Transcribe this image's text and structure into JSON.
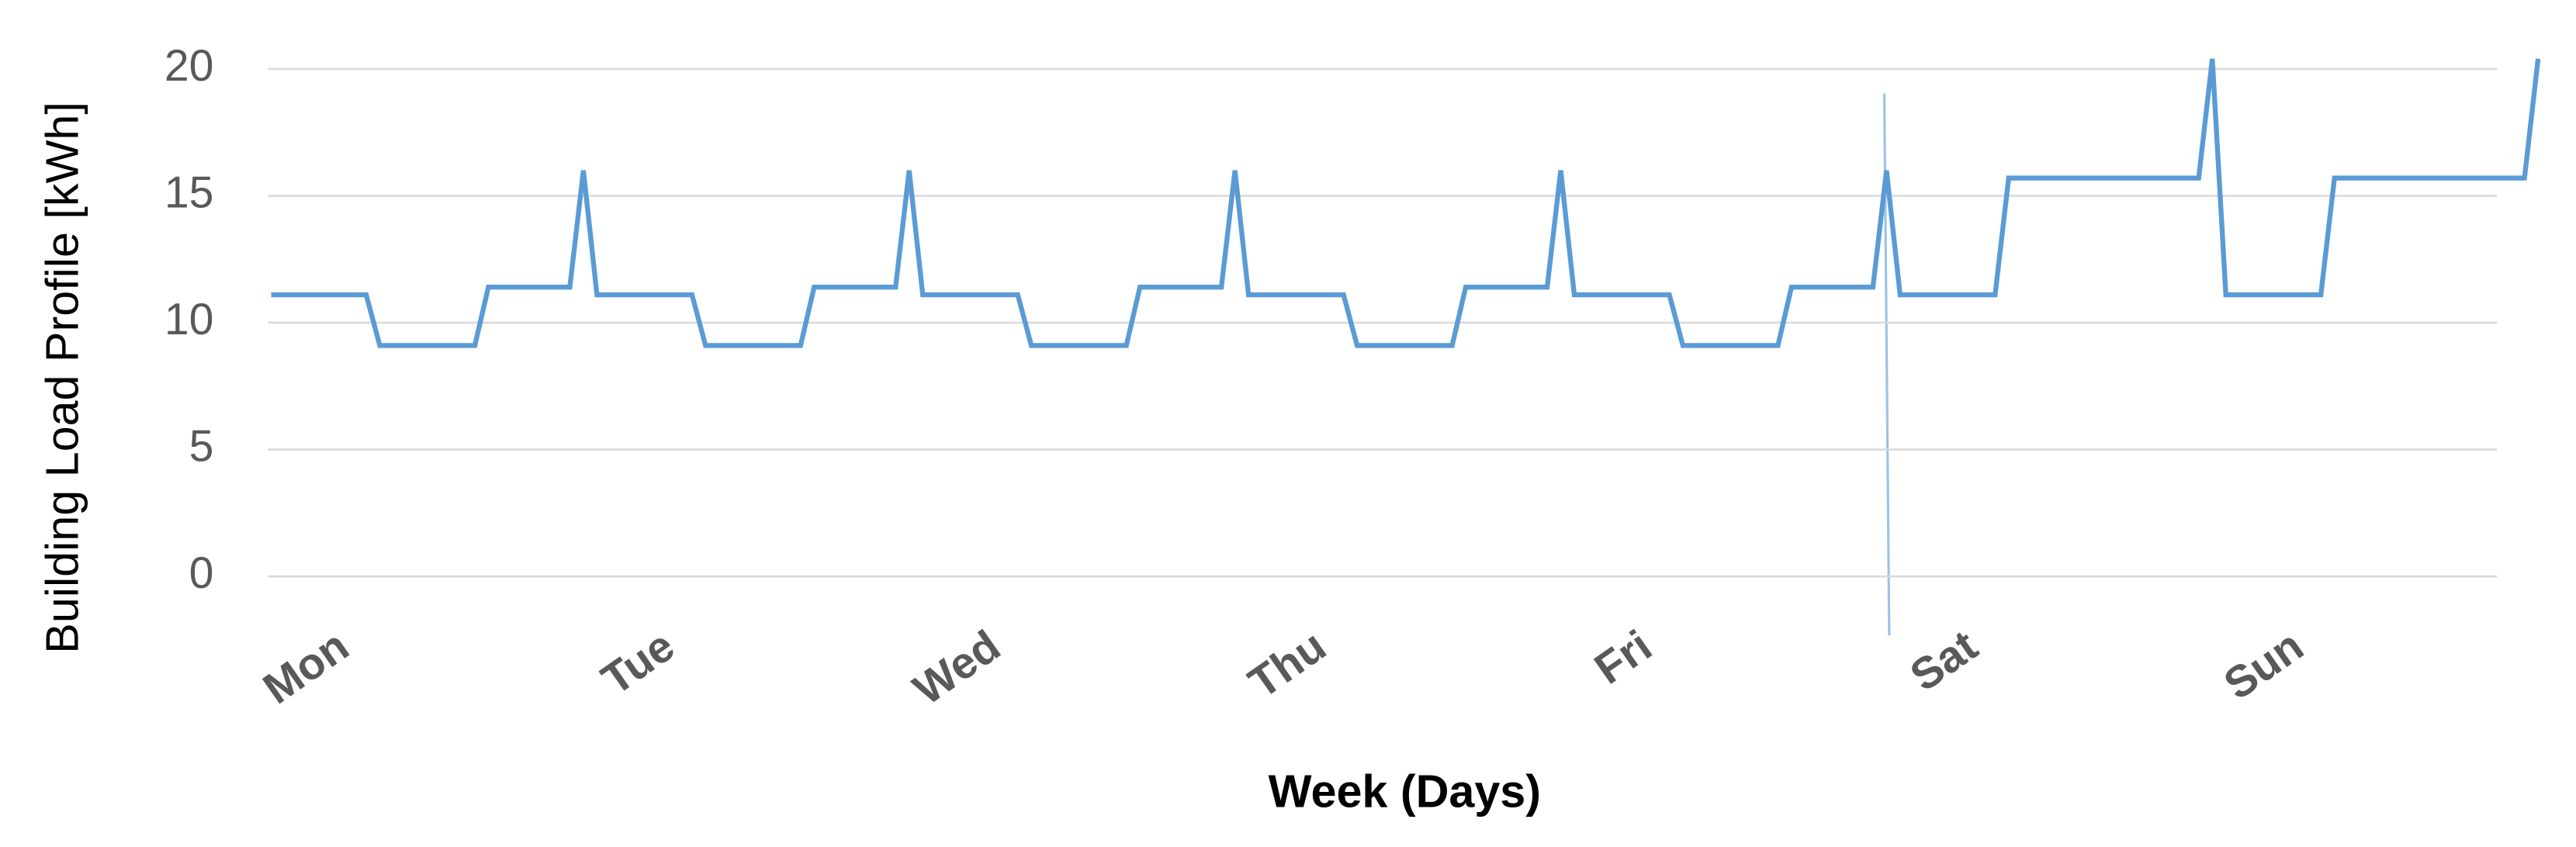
{
  "chart_data": {
    "type": "line",
    "ylabel": "Building Load Profile [kWh]",
    "xlabel": "Week (Days)",
    "categories": [
      "Mon",
      null,
      null,
      null,
      null,
      null,
      null,
      null,
      null,
      null,
      null,
      null,
      null,
      null,
      null,
      null,
      null,
      null,
      null,
      null,
      null,
      null,
      null,
      null,
      "Tue",
      null,
      null,
      null,
      null,
      null,
      null,
      null,
      null,
      null,
      null,
      null,
      null,
      null,
      null,
      null,
      null,
      null,
      null,
      null,
      null,
      null,
      null,
      null,
      "Wed",
      null,
      null,
      null,
      null,
      null,
      null,
      null,
      null,
      null,
      null,
      null,
      null,
      null,
      null,
      null,
      null,
      null,
      null,
      null,
      null,
      null,
      null,
      null,
      "Thu",
      null,
      null,
      null,
      null,
      null,
      null,
      null,
      null,
      null,
      null,
      null,
      null,
      null,
      null,
      null,
      null,
      null,
      null,
      null,
      null,
      null,
      null,
      null,
      "Fri",
      null,
      null,
      null,
      null,
      null,
      null,
      null,
      null,
      null,
      null,
      null,
      null,
      null,
      null,
      null,
      null,
      null,
      null,
      null,
      null,
      null,
      null,
      null,
      "Sat",
      null,
      null,
      null,
      null,
      null,
      null,
      null,
      null,
      null,
      null,
      null,
      null,
      null,
      null,
      null,
      null,
      null,
      null,
      null,
      null,
      null,
      null,
      null,
      "Sun",
      null,
      null,
      null,
      null,
      null,
      null,
      null,
      null,
      null,
      null,
      null,
      null,
      null,
      null,
      null,
      null,
      null,
      null,
      null,
      null,
      null,
      null,
      null
    ],
    "values": [
      11.1,
      11.1,
      11.1,
      11.1,
      11.1,
      11.1,
      11.1,
      11.1,
      9.1,
      9.1,
      9.1,
      9.1,
      9.1,
      9.1,
      9.1,
      9.1,
      11.4,
      11.4,
      11.4,
      11.4,
      11.4,
      11.4,
      11.4,
      16,
      11.1,
      11.1,
      11.1,
      11.1,
      11.1,
      11.1,
      11.1,
      11.1,
      9.1,
      9.1,
      9.1,
      9.1,
      9.1,
      9.1,
      9.1,
      9.1,
      11.4,
      11.4,
      11.4,
      11.4,
      11.4,
      11.4,
      11.4,
      16,
      11.1,
      11.1,
      11.1,
      11.1,
      11.1,
      11.1,
      11.1,
      11.1,
      9.1,
      9.1,
      9.1,
      9.1,
      9.1,
      9.1,
      9.1,
      9.1,
      11.4,
      11.4,
      11.4,
      11.4,
      11.4,
      11.4,
      11.4,
      16,
      11.1,
      11.1,
      11.1,
      11.1,
      11.1,
      11.1,
      11.1,
      11.1,
      9.1,
      9.1,
      9.1,
      9.1,
      9.1,
      9.1,
      9.1,
      9.1,
      11.4,
      11.4,
      11.4,
      11.4,
      11.4,
      11.4,
      11.4,
      16,
      11.1,
      11.1,
      11.1,
      11.1,
      11.1,
      11.1,
      11.1,
      11.1,
      9.1,
      9.1,
      9.1,
      9.1,
      9.1,
      9.1,
      9.1,
      9.1,
      11.4,
      11.4,
      11.4,
      11.4,
      11.4,
      11.4,
      11.4,
      16,
      11.1,
      11.1,
      11.1,
      11.1,
      11.1,
      11.1,
      11.1,
      11.1,
      15.7,
      15.7,
      15.7,
      15.7,
      15.7,
      15.7,
      15.7,
      15.7,
      15.7,
      15.7,
      15.7,
      15.7,
      15.7,
      15.7,
      15.7,
      20.4,
      11.1,
      11.1,
      11.1,
      11.1,
      11.1,
      11.1,
      11.1,
      11.1,
      15.7,
      15.7,
      15.7,
      15.7,
      15.7,
      15.7,
      15.7,
      15.7,
      15.7,
      15.7,
      15.7,
      15.7,
      15.7,
      15.7,
      15.7,
      20.4
    ],
    "color": "#5b9bd5",
    "ylim": [
      0,
      20
    ],
    "yticks": [
      0,
      5,
      10,
      15,
      20
    ],
    "grid": true
  }
}
